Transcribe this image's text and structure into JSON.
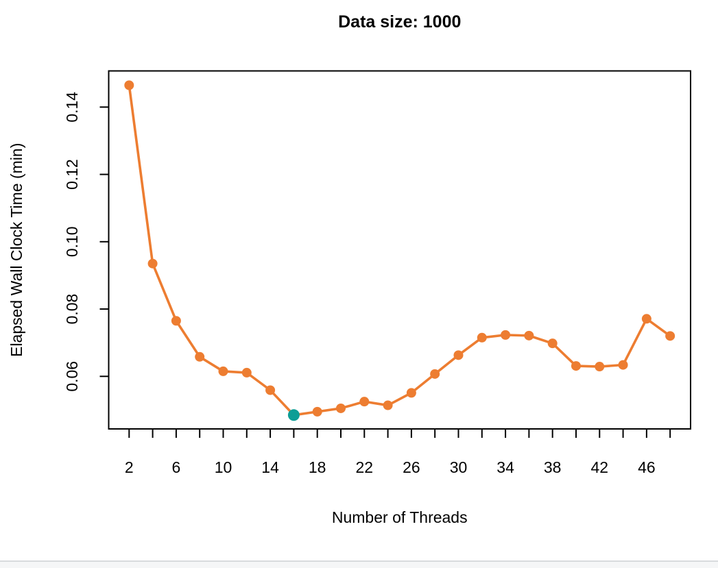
{
  "chart_data": {
    "type": "line",
    "title": "Data size: 1000",
    "xlabel": "Number of Threads",
    "ylabel": "Elapsed Wall Clock Time (min)",
    "x": [
      2,
      4,
      6,
      8,
      10,
      12,
      14,
      16,
      18,
      20,
      22,
      24,
      26,
      28,
      30,
      32,
      34,
      36,
      38,
      40,
      42,
      44,
      46,
      48
    ],
    "values": [
      0.1465,
      0.0935,
      0.0765,
      0.0658,
      0.0615,
      0.0611,
      0.0559,
      0.0485,
      0.0495,
      0.0505,
      0.0525,
      0.0514,
      0.0551,
      0.0607,
      0.0663,
      0.0715,
      0.0723,
      0.0721,
      0.0698,
      0.0631,
      0.0629,
      0.0634,
      0.0771,
      0.072
    ],
    "highlight_index": 7,
    "highlight_x": 16,
    "highlight_value": 0.0485,
    "series_color": "#ED7D31",
    "highlight_color": "#0D9E96",
    "xlim": [
      2,
      48
    ],
    "ylim": [
      0.045,
      0.15
    ],
    "x_tick_step": 2,
    "x_label_ticks": [
      2,
      6,
      10,
      14,
      18,
      22,
      26,
      30,
      34,
      38,
      42,
      46
    ],
    "y_ticks": [
      "0.06",
      "0.08",
      "0.10",
      "0.12",
      "0.14"
    ],
    "grid": "off",
    "legend": "none",
    "axis_color": "#000000",
    "background": "#ffffff"
  },
  "footer": {
    "divider_color": "#d8dbdd",
    "strip_color": "#f5f6f7"
  }
}
